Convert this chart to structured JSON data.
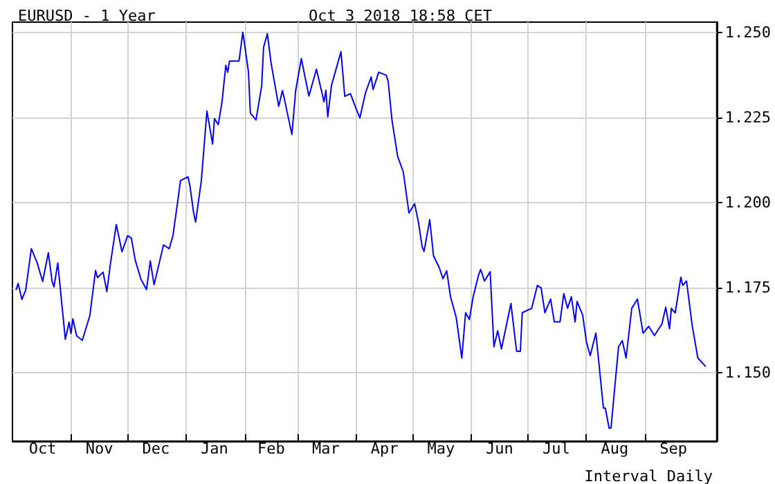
{
  "chart_data": {
    "type": "line",
    "title": "EURUSD - 1 Year",
    "annotations": [
      "Oct 3 2018 18:58 CET",
      "Interval Daily"
    ],
    "x": [
      "2017-10-03",
      "2017-10-04",
      "2017-10-06",
      "2017-10-08",
      "2017-10-11",
      "2017-10-14",
      "2017-10-17",
      "2017-10-20",
      "2017-10-22",
      "2017-10-23",
      "2017-10-25",
      "2017-10-29",
      "2017-10-31",
      "2017-11-01",
      "2017-11-02",
      "2017-11-04",
      "2017-11-07",
      "2017-11-11",
      "2017-11-14",
      "2017-11-15",
      "2017-11-18",
      "2017-11-20",
      "2017-11-22",
      "2017-11-25",
      "2017-11-28",
      "2017-12-01",
      "2017-12-03",
      "2017-12-05",
      "2017-12-08",
      "2017-12-11",
      "2017-12-13",
      "2017-12-15",
      "2017-12-18",
      "2017-12-20",
      "2017-12-23",
      "2017-12-25",
      "2017-12-28",
      "2017-12-29",
      "2018-01-02",
      "2018-01-03",
      "2018-01-05",
      "2018-01-06",
      "2018-01-09",
      "2018-01-12",
      "2018-01-15",
      "2018-01-16",
      "2018-01-18",
      "2018-01-20",
      "2018-01-22",
      "2018-01-23",
      "2018-01-24",
      "2018-01-29",
      "2018-01-31",
      "2018-02-01",
      "2018-02-03",
      "2018-02-04",
      "2018-02-07",
      "2018-02-10",
      "2018-02-11",
      "2018-02-13",
      "2018-02-15",
      "2018-02-19",
      "2018-02-21",
      "2018-02-22",
      "2018-02-26",
      "2018-02-28",
      "2018-03-03",
      "2018-03-07",
      "2018-03-11",
      "2018-03-15",
      "2018-03-16",
      "2018-03-17",
      "2018-03-19",
      "2018-03-24",
      "2018-03-26",
      "2018-03-29",
      "2018-04-01",
      "2018-04-03",
      "2018-04-06",
      "2018-04-09",
      "2018-04-10",
      "2018-04-13",
      "2018-04-17",
      "2018-04-18",
      "2018-04-20",
      "2018-04-23",
      "2018-04-26",
      "2018-04-29",
      "2018-05-02",
      "2018-05-04",
      "2018-05-06",
      "2018-05-07",
      "2018-05-10",
      "2018-05-12",
      "2018-05-15",
      "2018-05-17",
      "2018-05-19",
      "2018-05-21",
      "2018-05-24",
      "2018-05-27",
      "2018-05-29",
      "2018-05-31",
      "2018-06-02",
      "2018-06-05",
      "2018-06-06",
      "2018-06-08",
      "2018-06-11",
      "2018-06-13",
      "2018-06-15",
      "2018-06-17",
      "2018-06-22",
      "2018-06-25",
      "2018-06-27",
      "2018-06-28",
      "2018-07-03",
      "2018-07-06",
      "2018-07-08",
      "2018-07-10",
      "2018-07-13",
      "2018-07-15",
      "2018-07-18",
      "2018-07-20",
      "2018-07-22",
      "2018-07-24",
      "2018-07-26",
      "2018-07-27",
      "2018-07-30",
      "2018-08-01",
      "2018-08-03",
      "2018-08-06",
      "2018-08-10",
      "2018-08-11",
      "2018-08-13",
      "2018-08-14",
      "2018-08-18",
      "2018-08-20",
      "2018-08-22",
      "2018-08-25",
      "2018-08-28",
      "2018-08-31",
      "2018-09-03",
      "2018-09-06",
      "2018-09-10",
      "2018-09-12",
      "2018-09-14",
      "2018-09-15",
      "2018-09-17",
      "2018-09-20",
      "2018-09-21",
      "2018-09-23",
      "2018-09-26",
      "2018-09-29",
      "2018-10-03"
    ],
    "series": [
      {
        "color": "#0000ff",
        "values": [
          1.1745,
          1.1763,
          1.1716,
          1.1743,
          1.1865,
          1.1825,
          1.1769,
          1.1853,
          1.1769,
          1.1753,
          1.1823,
          1.1599,
          1.1649,
          1.1616,
          1.1659,
          1.1609,
          1.1596,
          1.1669,
          1.1801,
          1.178,
          1.1796,
          1.1739,
          1.1825,
          1.1936,
          1.1856,
          1.1903,
          1.1896,
          1.1832,
          1.1776,
          1.1745,
          1.1829,
          1.1759,
          1.1829,
          1.1876,
          1.1865,
          1.1903,
          1.2023,
          1.2065,
          1.2076,
          1.2049,
          1.1969,
          1.1943,
          1.2063,
          1.2269,
          1.2172,
          1.2247,
          1.2229,
          1.2296,
          1.2403,
          1.2383,
          1.2416,
          1.2416,
          1.25,
          1.2463,
          1.2383,
          1.2263,
          1.2243,
          1.2343,
          1.2456,
          1.2496,
          1.2409,
          1.2283,
          1.2329,
          1.2305,
          1.22,
          1.2329,
          1.2423,
          1.2313,
          1.2392,
          1.2296,
          1.233,
          1.2252,
          1.2345,
          1.2443,
          1.2312,
          1.232,
          1.2276,
          1.2249,
          1.2323,
          1.2369,
          1.2332,
          1.2383,
          1.2374,
          1.2356,
          1.2243,
          1.2136,
          1.209,
          1.197,
          1.1997,
          1.1943,
          1.187,
          1.1857,
          1.195,
          1.1844,
          1.181,
          1.1777,
          1.18,
          1.1724,
          1.1664,
          1.1544,
          1.1677,
          1.1657,
          1.1724,
          1.179,
          1.1804,
          1.177,
          1.1797,
          1.1577,
          1.1624,
          1.1571,
          1.1704,
          1.1564,
          1.1564,
          1.1677,
          1.169,
          1.1757,
          1.175,
          1.1677,
          1.1717,
          1.165,
          1.165,
          1.1733,
          1.169,
          1.1724,
          1.165,
          1.171,
          1.167,
          1.1591,
          1.1551,
          1.1617,
          1.1397,
          1.1397,
          1.1338,
          1.1338,
          1.1577,
          1.1595,
          1.1544,
          1.169,
          1.1717,
          1.1617,
          1.1637,
          1.161,
          1.1644,
          1.1693,
          1.163,
          1.169,
          1.1676,
          1.1781,
          1.1757,
          1.177,
          1.164,
          1.1544,
          1.152
        ]
      }
    ],
    "xlim": [
      "2017-10-01",
      "2018-10-09"
    ],
    "xticks": [
      {
        "value": "2017-10-17",
        "label": "Oct"
      },
      {
        "value": "2017-11-01",
        "label": null
      },
      {
        "value": "2017-11-16",
        "label": "Nov"
      },
      {
        "value": "2017-12-01",
        "label": null
      },
      {
        "value": "2017-12-16",
        "label": "Dec"
      },
      {
        "value": "2018-01-01",
        "label": null
      },
      {
        "value": "2018-01-16",
        "label": "Jan"
      },
      {
        "value": "2018-02-01",
        "label": null
      },
      {
        "value": "2018-02-15",
        "label": "Feb"
      },
      {
        "value": "2018-03-01",
        "label": null
      },
      {
        "value": "2018-03-16",
        "label": "Mar"
      },
      {
        "value": "2018-04-01",
        "label": null
      },
      {
        "value": "2018-04-16",
        "label": "Apr"
      },
      {
        "value": "2018-05-01",
        "label": null
      },
      {
        "value": "2018-05-16",
        "label": "May"
      },
      {
        "value": "2018-06-01",
        "label": null
      },
      {
        "value": "2018-06-16",
        "label": "Jun"
      },
      {
        "value": "2018-07-01",
        "label": null
      },
      {
        "value": "2018-07-16",
        "label": "Jul"
      },
      {
        "value": "2018-08-01",
        "label": null
      },
      {
        "value": "2018-08-16",
        "label": "Aug"
      },
      {
        "value": "2018-09-01",
        "label": null
      },
      {
        "value": "2018-09-16",
        "label": "Sep"
      }
    ],
    "ylim": [
      1.13,
      1.253
    ],
    "yticks": [
      {
        "value": 1.15,
        "label": "1.150"
      },
      {
        "value": 1.175,
        "label": "1.175"
      },
      {
        "value": 1.2,
        "label": "1.200"
      },
      {
        "value": 1.225,
        "label": "1.225"
      },
      {
        "value": 1.25,
        "label": "1.250"
      }
    ],
    "grid": true,
    "marker": "none",
    "line_style": "solid"
  }
}
